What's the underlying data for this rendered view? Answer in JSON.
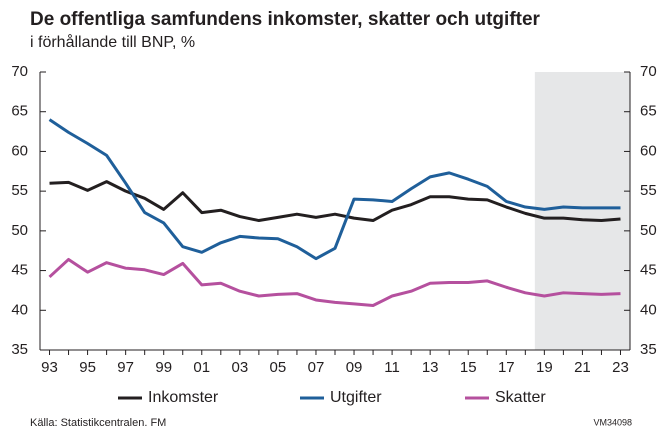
{
  "chart_data": {
    "type": "line",
    "title": "De offentliga samfundens inkomster, skatter och utgifter",
    "subtitle": "i förhållande till BNP, %",
    "source": "Källa: Statistikcentralen. FM",
    "code": "VM34098",
    "categories": [
      "93",
      null,
      "95",
      null,
      "97",
      null,
      "99",
      null,
      "01",
      null,
      "03",
      null,
      "05",
      null,
      "07",
      null,
      "09",
      null,
      "11",
      null,
      "13",
      null,
      "15",
      null,
      "17",
      null,
      "19",
      null,
      "21",
      null,
      "23"
    ],
    "shade_from": "19",
    "shade_color": "#e6e7e8",
    "ylim": [
      35,
      70
    ],
    "yticks": [
      35,
      40,
      45,
      50,
      55,
      60,
      65,
      70
    ],
    "y2lim": [
      35,
      70
    ],
    "y2ticks": [
      35,
      40,
      45,
      50,
      55,
      60,
      65,
      70
    ],
    "series": [
      {
        "name": "Inkomster",
        "color": "#231f20",
        "values": [
          56.0,
          56.1,
          55.1,
          56.2,
          55.0,
          54.1,
          52.7,
          54.8,
          52.3,
          52.6,
          51.8,
          51.3,
          51.7,
          52.1,
          51.7,
          52.1,
          51.6,
          51.3,
          52.6,
          53.3,
          54.3,
          54.3,
          54.0,
          53.9,
          53.0,
          52.2,
          51.6,
          51.6,
          51.4,
          51.3,
          51.5
        ]
      },
      {
        "name": "Utgifter",
        "color": "#1f5f9a",
        "values": [
          64.0,
          62.4,
          61.0,
          59.5,
          56.0,
          52.3,
          51.0,
          48.0,
          47.3,
          48.5,
          49.3,
          49.1,
          49.0,
          48.0,
          46.5,
          47.8,
          54.0,
          53.9,
          53.7,
          55.3,
          56.8,
          57.3,
          56.5,
          55.6,
          53.7,
          53.0,
          52.7,
          53.0,
          52.9,
          52.9,
          52.9
        ]
      },
      {
        "name": "Skatter",
        "color": "#b5509e",
        "values": [
          44.2,
          46.4,
          44.8,
          46.0,
          45.3,
          45.1,
          44.5,
          45.9,
          43.2,
          43.4,
          42.4,
          41.8,
          42.0,
          42.1,
          41.3,
          41.0,
          40.8,
          40.6,
          41.8,
          42.4,
          43.4,
          43.5,
          43.5,
          43.7,
          42.9,
          42.2,
          41.8,
          42.2,
          42.1,
          42.0,
          42.1
        ]
      }
    ]
  }
}
